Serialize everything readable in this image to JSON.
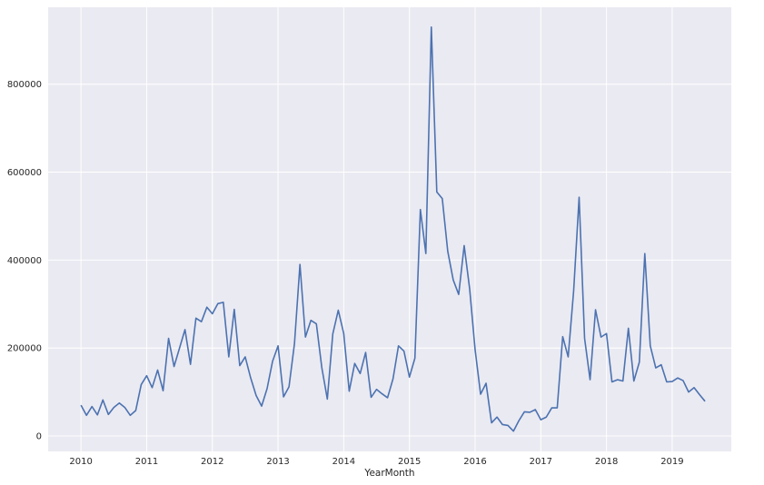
{
  "chart_data": {
    "type": "line",
    "title": "",
    "xlabel": "YearMonth",
    "ylabel": "",
    "grid": true,
    "legend": "none",
    "colors": {
      "background": "#eaeaf2",
      "grid": "#ffffff",
      "line": "#4c72b0",
      "text": "#262626"
    },
    "xlim": [
      2009.5,
      2019.9
    ],
    "ylim": [
      -35000,
      975000
    ],
    "xticks": [
      2010,
      2011,
      2012,
      2013,
      2014,
      2015,
      2016,
      2017,
      2018,
      2019
    ],
    "xtick_labels": [
      "2010",
      "2011",
      "2012",
      "2013",
      "2014",
      "2015",
      "2016",
      "2017",
      "2018",
      "2019"
    ],
    "yticks": [
      0,
      200000,
      400000,
      600000,
      800000
    ],
    "ytick_labels": [
      "0",
      "200000",
      "400000",
      "600000",
      "800000"
    ],
    "series": [
      {
        "x_start": "2010-01",
        "x_step": "month",
        "values": [
          70000,
          47000,
          67000,
          48000,
          82000,
          49000,
          65000,
          75000,
          65000,
          47000,
          58000,
          117000,
          137000,
          110000,
          150000,
          103000,
          222000,
          158000,
          200000,
          242000,
          163000,
          268000,
          260000,
          293000,
          278000,
          301000,
          304000,
          180000,
          288000,
          160000,
          180000,
          132000,
          92000,
          68000,
          108000,
          170000,
          205000,
          89000,
          112000,
          210000,
          390000,
          225000,
          263000,
          255000,
          155000,
          84000,
          232000,
          286000,
          233000,
          102000,
          165000,
          142000,
          190000,
          88000,
          106000,
          96000,
          87000,
          130000,
          205000,
          193000,
          134000,
          177000,
          515000,
          415000,
          930000,
          555000,
          540000,
          420000,
          355000,
          322000,
          433000,
          335000,
          196000,
          95000,
          120000,
          30000,
          43000,
          26000,
          24000,
          11000,
          35000,
          55000,
          54000,
          60000,
          37000,
          43000,
          64000,
          64000,
          226000,
          180000,
          330000,
          543000,
          222000,
          128000,
          287000,
          225000,
          233000,
          123000,
          128000,
          125000,
          245000,
          125000,
          168000,
          415000,
          205000,
          155000,
          162000,
          123000,
          124000,
          132000,
          126000,
          100000,
          110000,
          94000,
          79000
        ]
      }
    ]
  }
}
